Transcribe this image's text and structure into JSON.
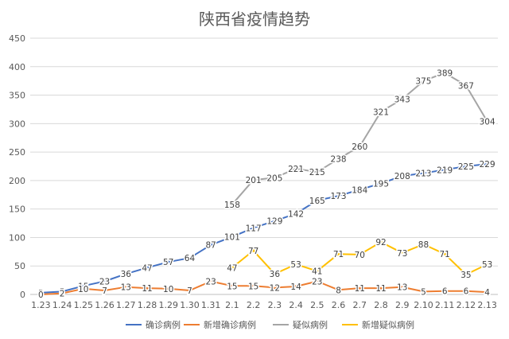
{
  "chart_data": {
    "type": "line",
    "title": "陕西省疫情趋势",
    "xlabel": "",
    "ylabel": "",
    "ylim": [
      0,
      450
    ],
    "yticks": [
      0,
      50,
      100,
      150,
      200,
      250,
      300,
      350,
      400,
      450
    ],
    "grid": true,
    "legend_position": "bottom",
    "categories": [
      "1.23",
      "1.24",
      "1.25",
      "1.26",
      "1.27",
      "1.28",
      "1.29",
      "1.30",
      "1.31",
      "2.1",
      "2.2",
      "2.3",
      "2.4",
      "2.5",
      "2.6",
      "2.7",
      "2.8",
      "2.9",
      "2.10",
      "2.11",
      "2.12",
      "2.13"
    ],
    "series": [
      {
        "name": "确诊病例",
        "color": "#4472C4",
        "values": [
          3,
          5,
          15,
          23,
          36,
          47,
          57,
          64,
          87,
          101,
          117,
          129,
          142,
          165,
          173,
          184,
          195,
          208,
          213,
          219,
          225,
          229
        ]
      },
      {
        "name": "新增确诊病例",
        "color": "#ED7D31",
        "values": [
          0,
          2,
          10,
          7,
          13,
          11,
          10,
          7,
          23,
          15,
          15,
          12,
          14,
          23,
          8,
          11,
          11,
          13,
          5,
          6,
          6,
          4
        ]
      },
      {
        "name": "疑似病例",
        "color": "#A5A5A5",
        "values": [
          null,
          null,
          null,
          null,
          null,
          null,
          null,
          null,
          null,
          158,
          201,
          205,
          221,
          215,
          238,
          260,
          321,
          343,
          375,
          389,
          367,
          304
        ]
      },
      {
        "name": "新增疑似病例",
        "color": "#FFC000",
        "values": [
          null,
          null,
          null,
          null,
          null,
          null,
          null,
          null,
          null,
          47,
          77,
          36,
          53,
          41,
          71,
          70,
          92,
          73,
          88,
          71,
          35,
          53
        ]
      }
    ]
  }
}
